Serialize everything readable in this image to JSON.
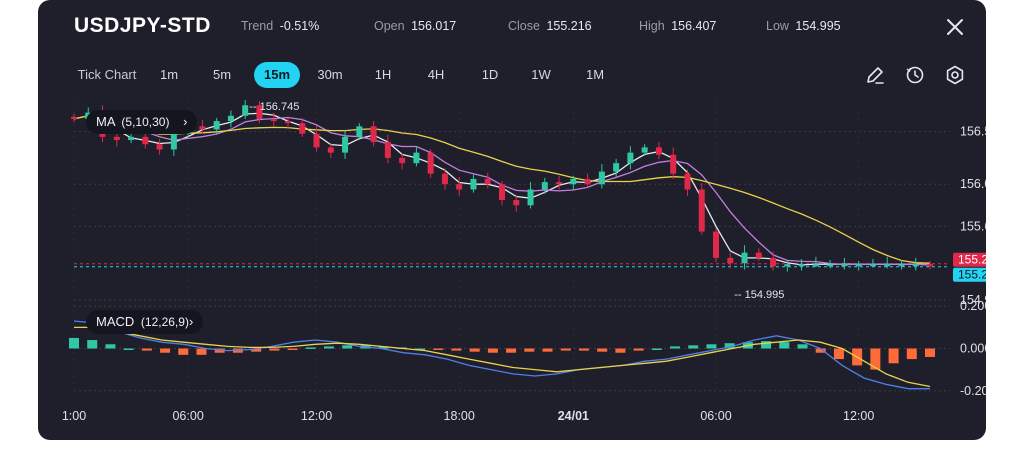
{
  "header": {
    "symbol": "USDJPY-STD",
    "trend_label": "Trend",
    "trend_value": "-0.51%",
    "open_label": "Open",
    "open_value": "156.017",
    "close_label": "Close",
    "close_value": "155.216",
    "high_label": "High",
    "high_value": "156.407",
    "low_label": "Low",
    "low_value": "154.995",
    "close_icon": "close-icon"
  },
  "toolbar": {
    "chart_type_label": "Tick Chart",
    "timeframes": [
      "1m",
      "5m",
      "15m",
      "30m",
      "1H",
      "4H",
      "1D",
      "1W",
      "1M"
    ],
    "active_timeframe": "15m",
    "tools": [
      "draw-pen-icon",
      "clock-reset-icon",
      "settings-gear-icon"
    ]
  },
  "indicators": {
    "ma_label": "MA",
    "ma_params": "(5,10,30)",
    "macd_label": "MACD",
    "macd_params": "(12,26,9)"
  },
  "colors": {
    "background": "#1f1f2b",
    "up": "#2fc7a4",
    "down": "#e0294a",
    "ma5": "#e8e8f0",
    "ma10": "#c27ee0",
    "ma30": "#e8d24a",
    "accent": "#22d3f2",
    "macd_pos": "#2fc7a4",
    "macd_neg": "#ff6a3a",
    "macd_line": "#4f7fe8",
    "signal_line": "#e8d24a"
  },
  "chart_data": [
    {
      "type": "candlestick",
      "title": "USDJPY-STD 15m",
      "price_axis": [
        "156.500",
        "156.000",
        "155.600",
        "154.900"
      ],
      "ylim": [
        154.9,
        156.8
      ],
      "x_ticks": [
        "1:00",
        "06:00",
        "12:00",
        "18:00",
        "24/01",
        "06:00",
        "12:00"
      ],
      "bold_tick": "24/01",
      "annotations": {
        "high_marker": "156.745",
        "low_marker": "154.995"
      },
      "price_tags": {
        "bid": "155.235",
        "ask": "155.216"
      },
      "series_anchors": {
        "x_time_index": [
          0,
          4,
          8,
          13,
          18,
          22,
          26,
          30,
          34,
          38,
          42,
          46,
          50,
          54,
          58,
          62,
          66,
          70,
          74,
          78,
          82,
          86,
          90,
          94,
          98,
          102,
          106,
          110,
          114,
          118,
          122,
          126,
          130,
          134,
          138,
          142,
          146,
          150,
          154,
          158,
          162,
          166,
          170,
          174,
          178,
          182,
          186,
          190,
          194,
          198,
          202,
          206,
          210,
          214,
          218,
          222,
          226,
          230,
          234,
          238,
          242
        ],
        "close": [
          156.62,
          156.68,
          156.45,
          156.42,
          156.45,
          156.38,
          156.33,
          156.48,
          156.55,
          156.52,
          156.6,
          156.65,
          156.75,
          156.62,
          156.6,
          156.58,
          156.48,
          156.35,
          156.3,
          156.45,
          156.55,
          156.4,
          156.25,
          156.2,
          156.3,
          156.1,
          156.0,
          155.95,
          156.05,
          156.0,
          155.85,
          155.8,
          155.95,
          156.02,
          156.0,
          156.05,
          156.0,
          156.12,
          156.2,
          156.3,
          156.35,
          156.28,
          156.1,
          155.95,
          155.55,
          155.3,
          155.25,
          155.35,
          155.3,
          155.22,
          155.24,
          155.24,
          155.24,
          155.24,
          155.24,
          155.24,
          155.24,
          155.24,
          155.24,
          155.24,
          155.22
        ]
      },
      "ma_series": [
        {
          "name": "MA5"
        },
        {
          "name": "MA10"
        },
        {
          "name": "MA30"
        }
      ]
    },
    {
      "type": "macd",
      "axis_labels": [
        "0.200",
        "0.000",
        "-0.200"
      ],
      "ylim": [
        -0.22,
        0.22
      ],
      "histogram": [
        0.05,
        0.04,
        0.02,
        0.0,
        -0.01,
        -0.02,
        -0.03,
        -0.03,
        -0.02,
        -0.02,
        -0.015,
        -0.01,
        -0.005,
        0.005,
        0.01,
        0.015,
        0.015,
        0.01,
        0.005,
        0.0,
        -0.005,
        -0.01,
        -0.015,
        -0.02,
        -0.02,
        -0.015,
        -0.015,
        -0.01,
        -0.01,
        -0.015,
        -0.02,
        -0.01,
        0.0,
        0.01,
        0.015,
        0.02,
        0.025,
        0.03,
        0.035,
        0.03,
        0.02,
        -0.02,
        -0.05,
        -0.08,
        -0.1,
        -0.07,
        -0.05,
        -0.04
      ],
      "macd_line": [
        0.13,
        0.12,
        0.08,
        0.05,
        0.03,
        0.02,
        0.0,
        -0.01,
        -0.005,
        0.01,
        0.03,
        0.04,
        0.03,
        0.01,
        0.0,
        -0.02,
        -0.03,
        -0.05,
        -0.08,
        -0.1,
        -0.12,
        -0.13,
        -0.12,
        -0.1,
        -0.09,
        -0.08,
        -0.06,
        -0.05,
        -0.03,
        -0.01,
        0.01,
        0.04,
        0.06,
        0.04,
        0.0,
        -0.08,
        -0.14,
        -0.17,
        -0.19,
        -0.19
      ],
      "signal_line": [
        0.1,
        0.1,
        0.08,
        0.06,
        0.04,
        0.03,
        0.02,
        0.01,
        0.005,
        0.005,
        0.01,
        0.02,
        0.025,
        0.02,
        0.01,
        0.0,
        -0.01,
        -0.03,
        -0.05,
        -0.07,
        -0.09,
        -0.1,
        -0.11,
        -0.1,
        -0.09,
        -0.08,
        -0.07,
        -0.06,
        -0.04,
        -0.02,
        0.0,
        0.02,
        0.03,
        0.04,
        0.03,
        0.0,
        -0.06,
        -0.12,
        -0.16,
        -0.18
      ]
    }
  ]
}
